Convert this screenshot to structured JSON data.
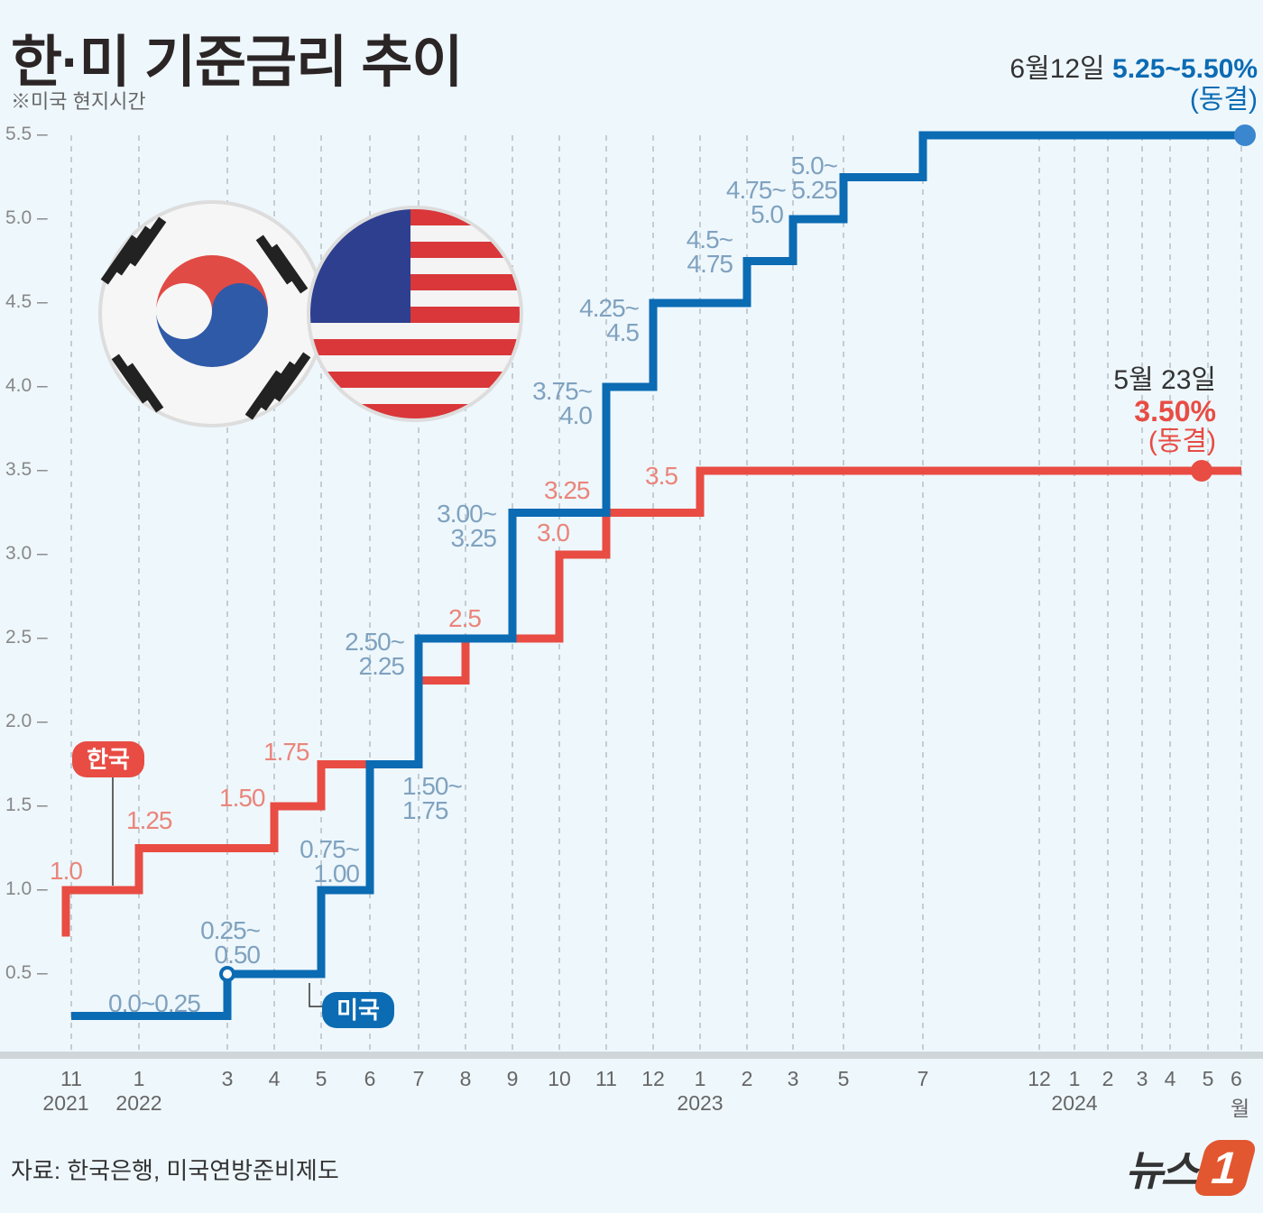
{
  "title": "한·미 기준금리 추이",
  "subtitle": "※미국 현지시간",
  "source": "자료: 한국은행, 미국연방준비제도",
  "logo_text": "뉴스1",
  "colors": {
    "korea": "#e84c43",
    "us": "#0b6bb3",
    "korea_label": "#ea857b",
    "us_label": "#7fa2bf",
    "background": "#eef7fc"
  },
  "chart_data": {
    "type": "line",
    "step": true,
    "title": "한·미 기준금리 추이",
    "ylim": [
      0,
      5.5
    ],
    "yticks": [
      "5.5",
      "5.0",
      "4.5",
      "4.0",
      "3.5",
      "3.0",
      "2.5",
      "2.0",
      "1.5",
      "1.0",
      "0.5"
    ],
    "grid": "vertical dashed",
    "xticks": [
      {
        "month": "11",
        "year": "2021",
        "date": "2021-11"
      },
      {
        "month": "1",
        "year": "2022",
        "date": "2022-01"
      },
      {
        "month": "3",
        "date": "2022-03"
      },
      {
        "month": "4",
        "date": "2022-04"
      },
      {
        "month": "5",
        "date": "2022-05"
      },
      {
        "month": "6",
        "date": "2022-06"
      },
      {
        "month": "7",
        "date": "2022-07"
      },
      {
        "month": "8",
        "date": "2022-08"
      },
      {
        "month": "9",
        "date": "2022-09"
      },
      {
        "month": "10",
        "date": "2022-10"
      },
      {
        "month": "11",
        "date": "2022-11"
      },
      {
        "month": "12",
        "date": "2022-12"
      },
      {
        "month": "1",
        "year": "2023",
        "date": "2023-01"
      },
      {
        "month": "2",
        "date": "2023-02"
      },
      {
        "month": "3",
        "date": "2023-03"
      },
      {
        "month": "5",
        "date": "2023-05"
      },
      {
        "month": "7",
        "date": "2023-07"
      },
      {
        "month": "12",
        "date": "2023-12"
      },
      {
        "month": "1",
        "year": "2024",
        "date": "2024-01"
      },
      {
        "month": "2",
        "date": "2024-02"
      },
      {
        "month": "3",
        "date": "2024-03"
      },
      {
        "month": "4",
        "date": "2024-04"
      },
      {
        "month": "5",
        "date": "2024-05"
      },
      {
        "month": "6월",
        "date": "2024-06"
      }
    ],
    "series": [
      {
        "name": "한국",
        "start_value": 0.75,
        "steps": [
          {
            "date": "2021-11",
            "value": 1.0,
            "label": "1.0"
          },
          {
            "date": "2022-01",
            "value": 1.25,
            "label": "1.25"
          },
          {
            "date": "2022-04",
            "value": 1.5,
            "label": "1.50"
          },
          {
            "date": "2022-05",
            "value": 1.75,
            "label": "1.75"
          },
          {
            "date": "2022-07",
            "value": 2.25
          },
          {
            "date": "2022-08",
            "value": 2.5,
            "label": "2.5"
          },
          {
            "date": "2022-10",
            "value": 3.0,
            "label": "3.0"
          },
          {
            "date": "2022-11",
            "value": 3.25,
            "label": "3.25"
          },
          {
            "date": "2023-01",
            "value": 3.5,
            "label": "3.5"
          }
        ],
        "end_date": "2024-06",
        "annotation": {
          "date": "5월 23일",
          "value": "3.50%",
          "note": "(동결)"
        }
      },
      {
        "name": "미국",
        "start_value": 0.25,
        "start_label": "0.0~0.25",
        "steps": [
          {
            "date": "2022-03",
            "value": 0.5,
            "label": [
              "0.25~",
              "0.50"
            ]
          },
          {
            "date": "2022-05",
            "value": 1.0,
            "label": [
              "0.75~",
              "1.00"
            ]
          },
          {
            "date": "2022-06",
            "value": 1.75,
            "label": [
              "1.50~",
              "1.75"
            ]
          },
          {
            "date": "2022-07",
            "value": 2.5,
            "label": [
              "2.50~",
              "2.25"
            ]
          },
          {
            "date": "2022-09",
            "value": 3.25,
            "label": [
              "3.00~",
              "3.25"
            ]
          },
          {
            "date": "2022-11",
            "value": 4.0,
            "label": [
              "3.75~",
              "4.0"
            ]
          },
          {
            "date": "2022-12",
            "value": 4.5,
            "label": [
              "4.25~",
              "4.5"
            ]
          },
          {
            "date": "2023-02",
            "value": 4.75,
            "label": [
              "4.5~",
              "4.75"
            ]
          },
          {
            "date": "2023-03",
            "value": 5.0,
            "label": [
              "5.0~",
              "4.75~ 5.25",
              "5.0"
            ]
          },
          {
            "date": "2023-05",
            "value": 5.25
          },
          {
            "date": "2023-07",
            "value": 5.5
          }
        ],
        "end_date": "2024-06",
        "annotation": {
          "date": "6월12일",
          "value": "5.25~5.50%",
          "note": "(동결)"
        }
      }
    ]
  }
}
